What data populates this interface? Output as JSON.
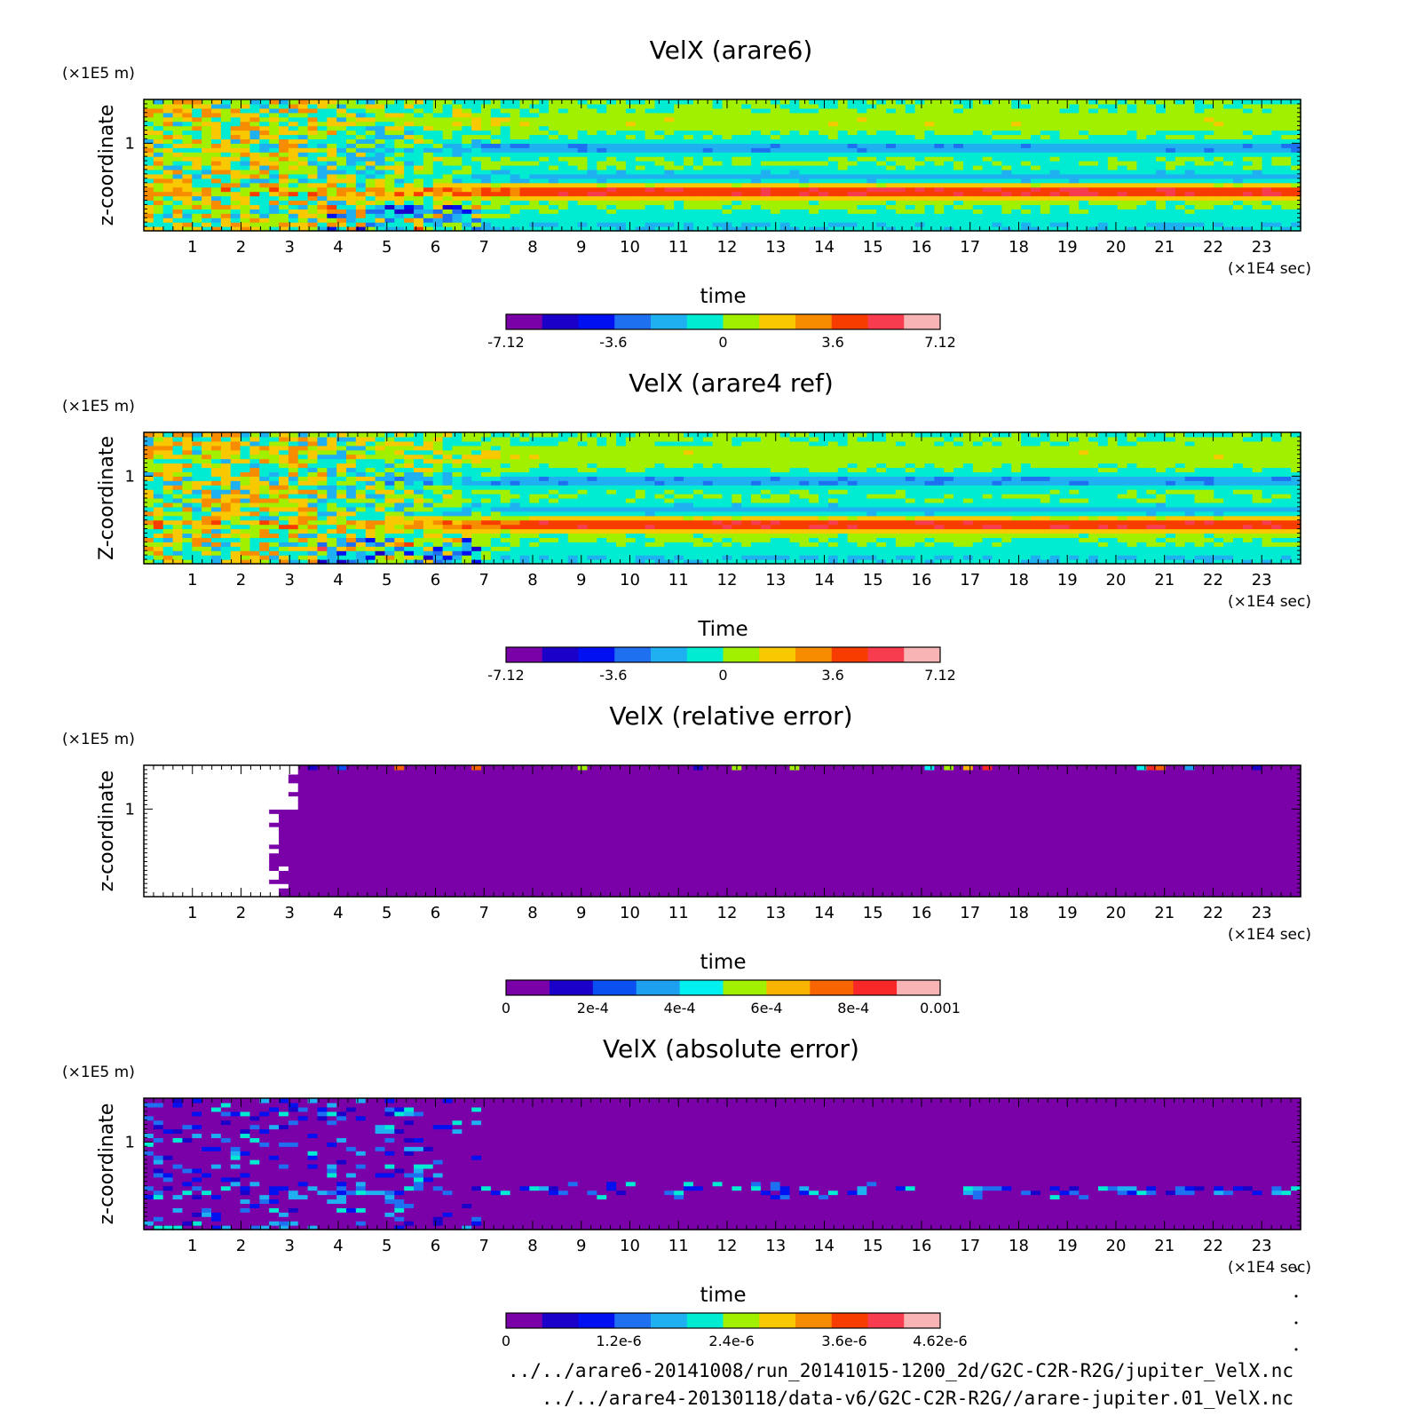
{
  "chart_data": [
    {
      "type": "heatmap",
      "title": "VelX (arare6)",
      "xlabel": "time",
      "ylabel": "z-coordinate",
      "x_unit": "(×1E4 sec)",
      "y_unit": "(×1E5 m)",
      "xlim": [
        0,
        23.8
      ],
      "ylim": [
        0,
        1.5
      ],
      "x_ticks": [
        "1",
        "2",
        "3",
        "4",
        "5",
        "6",
        "7",
        "8",
        "9",
        "10",
        "11",
        "12",
        "13",
        "14",
        "15",
        "16",
        "17",
        "18",
        "19",
        "20",
        "21",
        "22",
        "23"
      ],
      "y_ticks": [
        "1"
      ],
      "colorbar": {
        "range": [
          -7.12,
          7.12
        ],
        "labels": [
          "-7.12",
          "-3.6",
          "0",
          "3.6",
          "7.12"
        ],
        "colors": [
          "#7a00a8",
          "#1a00c8",
          "#0010f0",
          "#1e70f0",
          "#1eb0f0",
          "#00ecd2",
          "#a0f000",
          "#f8c800",
          "#f88c00",
          "#f83c00",
          "#f83c50",
          "#f8b4b4"
        ]
      },
      "bands": [
        {
          "z": 0.05,
          "value": -1.2
        },
        {
          "z": 0.15,
          "value": -0.4
        },
        {
          "z": 0.45,
          "value": 5.2
        },
        {
          "z": 0.62,
          "value": -1.8
        },
        {
          "z": 0.95,
          "value": -2.5
        },
        {
          "z": 1.25,
          "value": 1.0
        }
      ],
      "pattern": "statistical"
    },
    {
      "type": "heatmap",
      "title": "VelX (arare4 ref)",
      "xlabel": "Time",
      "ylabel": "Z-coordinate",
      "x_unit": "(×1E4 sec)",
      "y_unit": "(×1E5 m)",
      "xlim": [
        0,
        23.8
      ],
      "ylim": [
        0,
        1.5
      ],
      "x_ticks": [
        "1",
        "2",
        "3",
        "4",
        "5",
        "6",
        "7",
        "8",
        "9",
        "10",
        "11",
        "12",
        "13",
        "14",
        "15",
        "16",
        "17",
        "18",
        "19",
        "20",
        "21",
        "22",
        "23"
      ],
      "y_ticks": [
        "1"
      ],
      "colorbar": {
        "range": [
          -7.12,
          7.12
        ],
        "labels": [
          "-7.12",
          "-3.6",
          "0",
          "3.6",
          "7.12"
        ],
        "colors": [
          "#7a00a8",
          "#1a00c8",
          "#0010f0",
          "#1e70f0",
          "#1eb0f0",
          "#00ecd2",
          "#a0f000",
          "#f8c800",
          "#f88c00",
          "#f83c00",
          "#f83c50",
          "#f8b4b4"
        ]
      },
      "bands": [
        {
          "z": 0.05,
          "value": -1.2
        },
        {
          "z": 0.15,
          "value": -0.4
        },
        {
          "z": 0.45,
          "value": 5.2
        },
        {
          "z": 0.62,
          "value": -1.8
        },
        {
          "z": 0.95,
          "value": -2.5
        },
        {
          "z": 1.25,
          "value": 1.0
        }
      ],
      "pattern": "statistical"
    },
    {
      "type": "heatmap",
      "title": "VelX (relative error)",
      "xlabel": "time",
      "ylabel": "z-coordinate",
      "x_unit": "(×1E4 sec)",
      "y_unit": "(×1E5 m)",
      "xlim": [
        0,
        23.8
      ],
      "ylim": [
        0,
        1.5
      ],
      "x_ticks": [
        "1",
        "2",
        "3",
        "4",
        "5",
        "6",
        "7",
        "8",
        "9",
        "10",
        "11",
        "12",
        "13",
        "14",
        "15",
        "16",
        "17",
        "18",
        "19",
        "20",
        "21",
        "22",
        "23"
      ],
      "y_ticks": [
        "1"
      ],
      "colorbar": {
        "range": [
          0,
          0.001
        ],
        "labels": [
          "0",
          "2e-4",
          "4e-4",
          "6e-4",
          "8e-4",
          "0.001"
        ],
        "colors": [
          "#7a00a8",
          "#1a00c8",
          "#0a50f0",
          "#1ea0f0",
          "#00f0f0",
          "#a0f000",
          "#f8b400",
          "#f86400",
          "#f82828",
          "#f8b4b4"
        ]
      },
      "blank_region_end_x": 2.6,
      "pattern": "statistical"
    },
    {
      "type": "heatmap",
      "title": "VelX (absolute error)",
      "xlabel": "time",
      "ylabel": "z-coordinate",
      "x_unit": "(×1E4 sec)",
      "y_unit": "(×1E5 m)",
      "xlim": [
        0,
        23.8
      ],
      "ylim": [
        0,
        1.5
      ],
      "x_ticks": [
        "1",
        "2",
        "3",
        "4",
        "5",
        "6",
        "7",
        "8",
        "9",
        "10",
        "11",
        "12",
        "13",
        "14",
        "15",
        "16",
        "17",
        "18",
        "19",
        "20",
        "21",
        "22",
        "23"
      ],
      "y_ticks": [
        "1"
      ],
      "colorbar": {
        "range": [
          0,
          4.62e-06
        ],
        "labels": [
          "0",
          "1.2e-6",
          "2.4e-6",
          "3.6e-6",
          "4.62e-6"
        ],
        "colors": [
          "#7a00a8",
          "#1a00c8",
          "#0010f0",
          "#1e70f0",
          "#1eb0f0",
          "#00ecd2",
          "#a0f000",
          "#f8c800",
          "#f88c00",
          "#f83c00",
          "#f83c50",
          "#f8b4b4"
        ]
      },
      "pattern": "statistical"
    }
  ],
  "files": [
    "../../arare6-20141008/run_20141015-1200_2d/G2C-C2R-R2G/jupiter_VelX.nc",
    "../../arare4-20130118/data-v6/G2C-C2R-R2G//arare-jupiter.01_VelX.nc"
  ]
}
